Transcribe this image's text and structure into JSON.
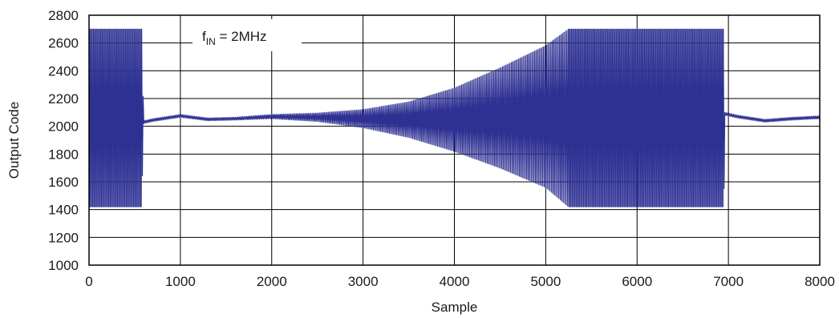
{
  "chart_data": {
    "type": "line",
    "title": "",
    "xlabel": "Sample",
    "ylabel": "Output Code",
    "xlim": [
      0,
      8000
    ],
    "ylim": [
      1000,
      2800
    ],
    "x_ticks": [
      "0",
      "1000",
      "2000",
      "3000",
      "4000",
      "5000",
      "6000",
      "7000",
      "8000"
    ],
    "y_ticks": [
      "1000",
      "1200",
      "1400",
      "1600",
      "1800",
      "2000",
      "2200",
      "2400",
      "2600",
      "2800"
    ],
    "grid": true,
    "legend": "none",
    "annotation": {
      "main": "f",
      "sub": "IN",
      "rest": " = 2MHz"
    },
    "line_color": "#2e3192",
    "series": [
      {
        "envelope_upper": [
          [
            0,
            2700
          ],
          [
            580,
            2700
          ],
          [
            590,
            2260
          ],
          [
            600,
            2040
          ],
          [
            700,
            2055
          ],
          [
            1000,
            2085
          ],
          [
            1300,
            2060
          ],
          [
            1600,
            2065
          ],
          [
            2000,
            2085
          ],
          [
            2500,
            2095
          ],
          [
            3000,
            2120
          ],
          [
            3500,
            2175
          ],
          [
            4000,
            2275
          ],
          [
            4500,
            2420
          ],
          [
            5000,
            2580
          ],
          [
            5250,
            2700
          ],
          [
            6950,
            2700
          ],
          [
            6960,
            2100
          ],
          [
            7100,
            2080
          ],
          [
            7400,
            2050
          ],
          [
            7700,
            2065
          ],
          [
            8000,
            2075
          ]
        ],
        "envelope_lower": [
          [
            0,
            1420
          ],
          [
            580,
            1420
          ],
          [
            590,
            1980
          ],
          [
            600,
            2020
          ],
          [
            700,
            2035
          ],
          [
            1000,
            2065
          ],
          [
            1300,
            2040
          ],
          [
            1600,
            2045
          ],
          [
            2000,
            2055
          ],
          [
            2500,
            2035
          ],
          [
            3000,
            1990
          ],
          [
            3500,
            1920
          ],
          [
            4000,
            1820
          ],
          [
            4500,
            1700
          ],
          [
            5000,
            1560
          ],
          [
            5250,
            1420
          ],
          [
            6950,
            1420
          ],
          [
            6960,
            2080
          ],
          [
            7100,
            2060
          ],
          [
            7400,
            2030
          ],
          [
            7700,
            2045
          ],
          [
            8000,
            2055
          ]
        ]
      }
    ]
  }
}
